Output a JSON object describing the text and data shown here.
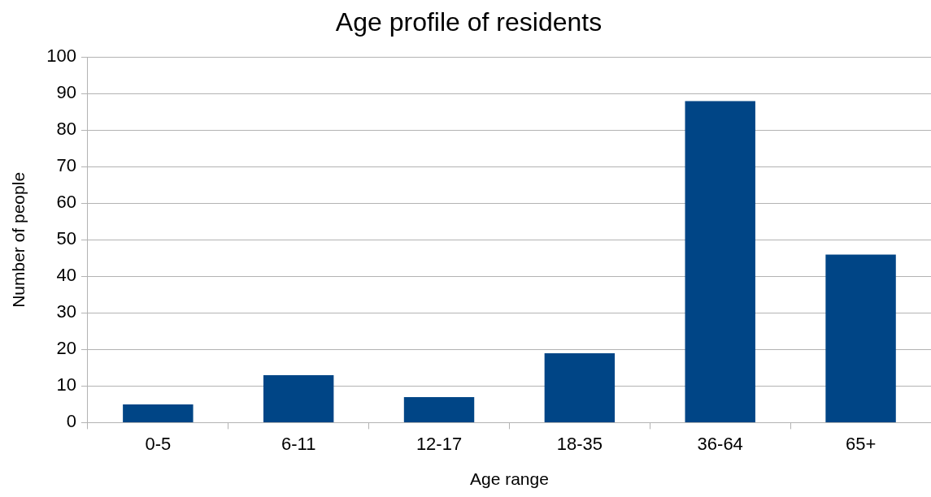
{
  "chart_data": {
    "type": "bar",
    "title": "Age profile of residents",
    "xlabel": "Age range",
    "ylabel": "Number of people",
    "categories": [
      "0-5",
      "6-11",
      "12-17",
      "18-35",
      "36-64",
      "65+"
    ],
    "values": [
      5,
      13,
      7,
      19,
      88,
      46
    ],
    "color": "#004586",
    "ylim": [
      0,
      100
    ],
    "yticks": [
      0,
      10,
      20,
      30,
      40,
      50,
      60,
      70,
      80,
      90,
      100
    ],
    "grid": "y"
  }
}
